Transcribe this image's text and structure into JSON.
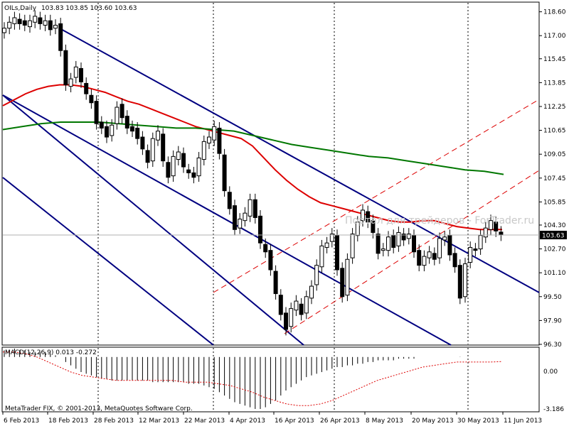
{
  "chart_data": [
    {
      "type": "candlestick",
      "title": "OILs,Daily",
      "ohlc_text": "103.83 103.85 103.60 103.63",
      "last_price": 103.63,
      "last_price_label": "103.63",
      "watermark": "Портал для трейдеров - ForTrader.ru",
      "ylim": [
        96.3,
        119.2
      ],
      "y_ticks": [
        "118.60",
        "117.00",
        "115.45",
        "113.85",
        "112.25",
        "110.65",
        "109.05",
        "107.45",
        "105.85",
        "104.30",
        "102.70",
        "101.10",
        "99.50",
        "97.90",
        "96.30"
      ],
      "x_tick_labels": [
        "6 Feb 2013",
        "18 Feb 2013",
        "28 Feb 2013",
        "12 Mar 2013",
        "22 Mar 2013",
        "4 Apr 2013",
        "16 Apr 2013",
        "26 Apr 2013",
        "8 May 2013",
        "20 May 2013",
        "30 May 2013",
        "11 Jun 2013"
      ],
      "grid": "vertical-dotted",
      "series": [
        {
          "kind": "ohlc",
          "open": [
            117.2,
            117.5,
            117.8,
            118.1,
            118.0,
            117.6,
            117.9,
            118.2,
            117.7,
            118.0,
            117.5,
            117.8,
            116.0,
            113.6,
            114.2,
            114.8,
            113.8,
            113.0,
            112.6,
            111.2,
            110.9,
            110.3,
            111.1,
            112.4,
            111.6,
            110.9,
            110.8,
            110.2,
            109.3,
            108.6,
            110.0,
            110.4,
            108.5,
            107.6,
            108.7,
            109.1,
            108.0,
            107.8,
            107.6,
            108.7,
            109.8,
            110.0,
            110.8,
            109.0,
            106.5,
            105.6,
            104.1,
            104.6,
            104.9,
            106.0,
            104.9,
            103.0,
            102.6,
            101.2,
            99.6,
            98.4,
            97.5,
            98.6,
            99.0,
            98.4,
            99.4,
            100.3,
            101.5,
            102.8,
            103.2,
            103.6,
            101.4,
            99.6,
            102.1,
            103.6,
            104.6,
            105.2,
            104.6,
            103.7,
            102.6,
            102.6,
            103.6,
            102.9,
            103.7,
            103.4,
            103.6,
            102.6,
            101.6,
            102.1,
            102.4,
            102.1,
            103.3,
            103.6,
            102.4,
            101.6,
            99.5,
            101.8,
            102.7,
            102.7,
            103.5,
            104.0,
            104.5,
            103.83
          ],
          "close": [
            117.5,
            117.9,
            118.2,
            117.8,
            117.7,
            118.0,
            118.3,
            117.8,
            118.0,
            117.4,
            117.7,
            116.0,
            113.7,
            114.1,
            114.9,
            113.9,
            113.1,
            112.5,
            111.1,
            110.8,
            110.2,
            111.0,
            112.2,
            111.5,
            110.8,
            110.6,
            110.1,
            109.4,
            108.5,
            110.1,
            110.6,
            108.6,
            107.5,
            108.9,
            109.2,
            108.2,
            107.8,
            107.5,
            108.8,
            109.9,
            110.2,
            110.9,
            109.1,
            106.6,
            105.4,
            104.0,
            104.7,
            105.1,
            106.0,
            104.8,
            103.1,
            102.5,
            101.3,
            99.7,
            98.3,
            97.3,
            98.7,
            99.2,
            98.3,
            99.5,
            100.2,
            101.6,
            102.9,
            103.1,
            103.7,
            101.3,
            99.5,
            102.0,
            103.7,
            104.5,
            105.3,
            104.5,
            103.8,
            102.4,
            102.7,
            103.5,
            102.8,
            103.8,
            103.3,
            103.7,
            102.5,
            101.6,
            102.2,
            102.5,
            102.0,
            103.4,
            103.5,
            102.3,
            101.5,
            99.4,
            101.7,
            102.8,
            102.6,
            103.6,
            104.1,
            104.6,
            103.9,
            103.63
          ]
        }
      ],
      "overlays": [
        {
          "name": "MA fast",
          "color": "#dd0000",
          "values": [
            112.3,
            112.7,
            113.1,
            113.4,
            113.6,
            113.7,
            113.7,
            113.6,
            113.4,
            113.2,
            112.9,
            112.6,
            112.4,
            112.1,
            111.8,
            111.5,
            111.2,
            110.9,
            110.7,
            110.5,
            110.3,
            110.1,
            109.6,
            108.8,
            108.0,
            107.3,
            106.7,
            106.2,
            105.8,
            105.6,
            105.4,
            105.2,
            105.0,
            104.8,
            104.6,
            104.5,
            104.5,
            104.6,
            104.6,
            104.4,
            104.2,
            104.1,
            104.0,
            104.0,
            104.0
          ]
        },
        {
          "name": "MA slow",
          "color": "#007700",
          "values": [
            110.7,
            110.9,
            111.1,
            111.2,
            111.2,
            111.2,
            111.1,
            111.0,
            110.9,
            110.8,
            110.8,
            110.7,
            110.6,
            110.3,
            110.0,
            109.7,
            109.5,
            109.3,
            109.1,
            108.9,
            108.8,
            108.6,
            108.4,
            108.2,
            108.0,
            107.9,
            107.7
          ]
        }
      ]
    },
    {
      "type": "bar",
      "title": "MACD(12,26,9) 0.013 -0.272",
      "y_ticks": [
        "0.00",
        "-3.186"
      ],
      "note": "indicator subwindow: histogram and dotted signal line",
      "values": [
        0.4,
        0.4,
        0.5,
        0.4,
        0.4,
        0.3,
        0.3,
        0.3,
        0.3,
        0.2,
        0.1,
        0.0,
        -0.3,
        -0.5,
        -0.7,
        -0.9,
        -1.0,
        -1.1,
        -1.2,
        -1.3,
        -1.3,
        -1.4,
        -1.4,
        -1.4,
        -1.4,
        -1.4,
        -1.4,
        -1.4,
        -1.4,
        -1.5,
        -1.5,
        -1.5,
        -1.5,
        -1.5,
        -1.5,
        -1.5,
        -1.6,
        -1.6,
        -1.6,
        -1.7,
        -1.8,
        -1.9,
        -2.1,
        -2.3,
        -2.5,
        -2.7,
        -2.8,
        -2.9,
        -3.0,
        -3.1,
        -3.1,
        -3.0,
        -2.8,
        -2.6,
        -2.3,
        -2.0,
        -1.8,
        -1.6,
        -1.4,
        -1.2,
        -1.1,
        -1.0,
        -0.9,
        -0.8,
        -0.7,
        -0.6,
        -0.6,
        -0.5,
        -0.5,
        -0.4,
        -0.4,
        -0.3,
        -0.3,
        -0.2,
        -0.2,
        -0.2,
        -0.2,
        -0.1,
        -0.1,
        -0.1,
        -0.1,
        0.0,
        0.0,
        0.0,
        0.0,
        0.0,
        0.0,
        0.0,
        0.0,
        0.013
      ],
      "signal": [
        0.3,
        0.3,
        0.2,
        0.0,
        -0.3,
        -0.6,
        -0.9,
        -1.1,
        -1.2,
        -1.3,
        -1.4,
        -1.4,
        -1.4,
        -1.4,
        -1.4,
        -1.4,
        -1.5,
        -1.5,
        -1.5,
        -1.6,
        -1.7,
        -1.9,
        -2.1,
        -2.4,
        -2.6,
        -2.8,
        -2.9,
        -2.9,
        -2.8,
        -2.6,
        -2.3,
        -2.0,
        -1.7,
        -1.4,
        -1.2,
        -1.0,
        -0.8,
        -0.6,
        -0.5,
        -0.4,
        -0.3,
        -0.3,
        -0.3,
        -0.3,
        -0.272
      ]
    }
  ],
  "footer": {
    "copyright": "MetaTrader FIX, © 2001-2013, MetaQuotes Software Corp."
  },
  "colors": {
    "candle_up": "#ffffff",
    "candle_down": "#000000",
    "channel": "#000080",
    "dashed_channel": "#dd0000",
    "last_price_bg": "#000000"
  }
}
